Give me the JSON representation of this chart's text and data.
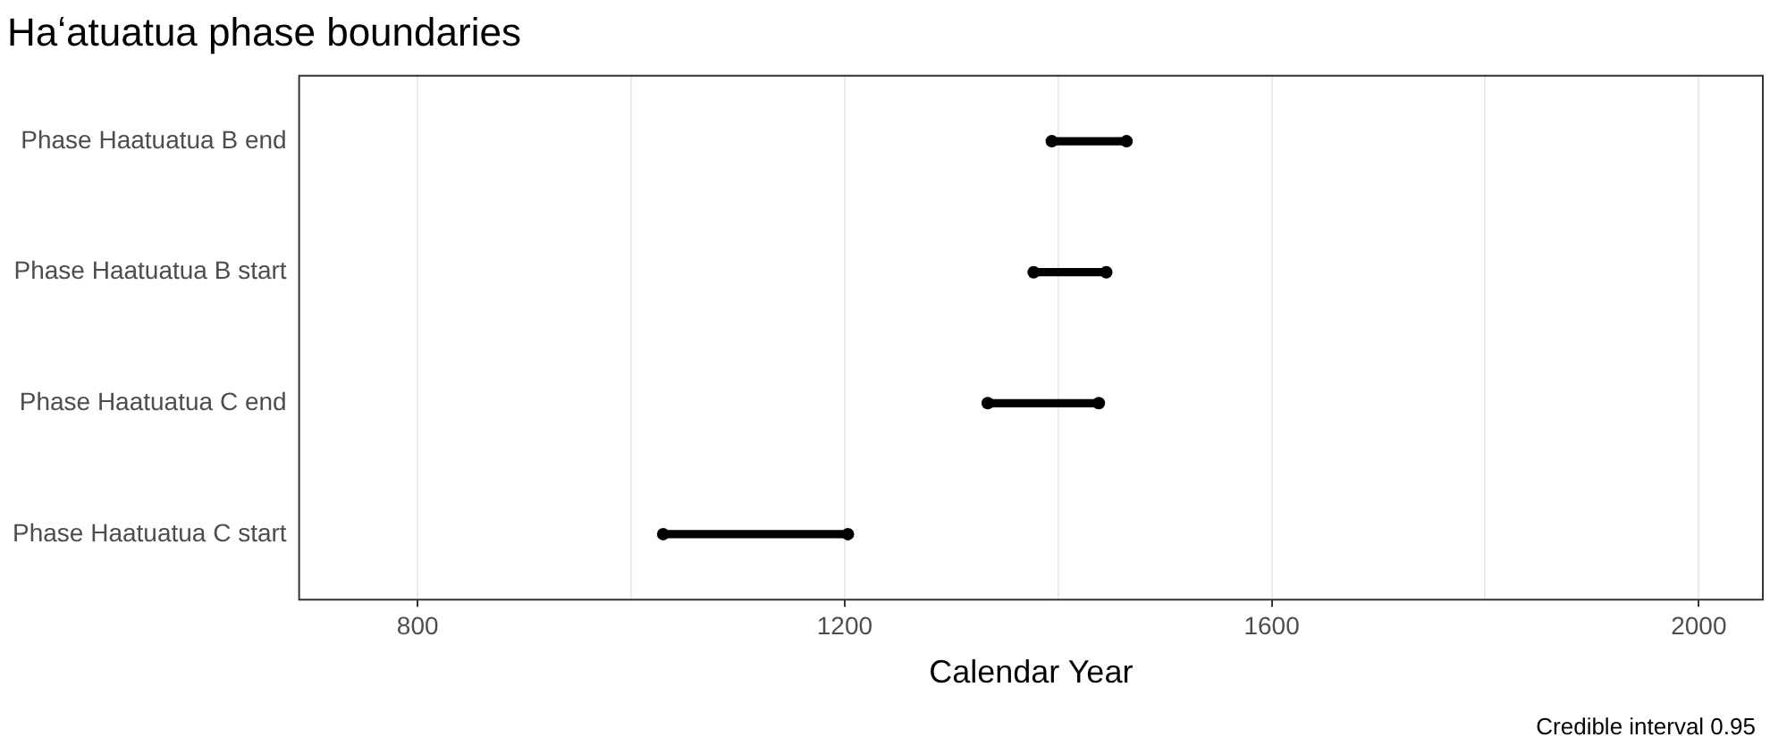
{
  "chart_data": {
    "type": "bar",
    "orientation": "horizontal",
    "title": "Haʻatuatua phase boundaries",
    "xlabel": "Calendar Year",
    "annotations": [
      "Credible interval 0.95"
    ],
    "categories": [
      "Phase Haatuatua B end",
      "Phase Haatuatua B start",
      "Phase Haatuatua C end",
      "Phase Haatuatua C start"
    ],
    "series": [
      {
        "type": "bar",
        "color": "#000000",
        "base": [
          1394,
          1377,
          1334,
          1030
        ],
        "values": [
          70,
          68,
          104,
          173
        ]
      },
      {
        "type": "scatter",
        "color": "#000000",
        "marker": "circle",
        "values": [
          1394,
          1377,
          1334,
          1030
        ]
      },
      {
        "type": "scatter",
        "color": "#000000",
        "marker": "circle",
        "values": [
          1464,
          1445,
          1438,
          1203
        ]
      }
    ],
    "xlim": [
      689,
      2060
    ],
    "xticks": [
      800,
      {
        "value": 1000,
        "label": null
      },
      1200,
      {
        "value": 1400,
        "label": null
      },
      1600,
      {
        "value": 1800,
        "label": null
      },
      2000
    ],
    "grid": "x",
    "legend": false
  }
}
